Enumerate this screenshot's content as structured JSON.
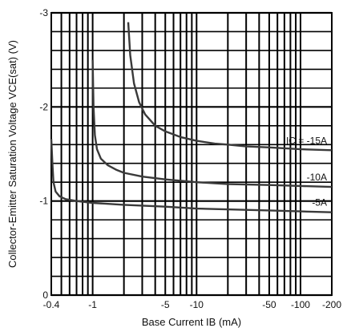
{
  "chart_data": {
    "type": "line",
    "title": "",
    "xlabel": "Base Current  IB (mA)",
    "ylabel": "Collector-Emitter Saturation Voltage  VCE(sat) (V)",
    "x_scale": "log",
    "xlim": [
      -0.4,
      -200
    ],
    "ylim": [
      0,
      -3
    ],
    "x_ticks": [
      {
        "value": -0.4,
        "label": "-0.4"
      },
      {
        "value": -1,
        "label": "-1"
      },
      {
        "value": -5,
        "label": "-5"
      },
      {
        "value": -10,
        "label": "-10"
      },
      {
        "value": -50,
        "label": "-50"
      },
      {
        "value": -100,
        "label": "-100"
      },
      {
        "value": -200,
        "label": "-200"
      }
    ],
    "y_ticks": [
      {
        "value": 0,
        "label": "0"
      },
      {
        "value": -1,
        "label": "-1"
      },
      {
        "value": -2,
        "label": "-2"
      },
      {
        "value": -3,
        "label": "-3"
      }
    ],
    "grid": true,
    "series": [
      {
        "name": "IC = -15A",
        "x": [
          -2.2,
          -2.3,
          -2.5,
          -2.8,
          -3.2,
          -4,
          -5,
          -7,
          -10,
          -15,
          -20,
          -30,
          -50,
          -100,
          -200
        ],
        "y": [
          -2.9,
          -2.55,
          -2.25,
          -2.05,
          -1.92,
          -1.8,
          -1.74,
          -1.68,
          -1.64,
          -1.61,
          -1.6,
          -1.58,
          -1.57,
          -1.55,
          -1.54
        ]
      },
      {
        "name": "-10A",
        "x": [
          -1,
          -1.02,
          -1.05,
          -1.1,
          -1.2,
          -1.4,
          -1.7,
          -2,
          -3,
          -5,
          -10,
          -20,
          -50,
          -100,
          -200
        ],
        "y": [
          -2.5,
          -2.0,
          -1.7,
          -1.55,
          -1.45,
          -1.38,
          -1.33,
          -1.3,
          -1.26,
          -1.23,
          -1.2,
          -1.18,
          -1.17,
          -1.16,
          -1.15
        ]
      },
      {
        "name": "-5A",
        "x": [
          -0.4,
          -0.41,
          -0.42,
          -0.44,
          -0.48,
          -0.55,
          -0.7,
          -1,
          -2,
          -5,
          -10,
          -50,
          -100,
          -200
        ],
        "y": [
          -1.66,
          -1.4,
          -1.2,
          -1.1,
          -1.05,
          -1.02,
          -1.0,
          -0.98,
          -0.96,
          -0.94,
          -0.92,
          -0.9,
          -0.89,
          -0.88
        ]
      }
    ]
  }
}
